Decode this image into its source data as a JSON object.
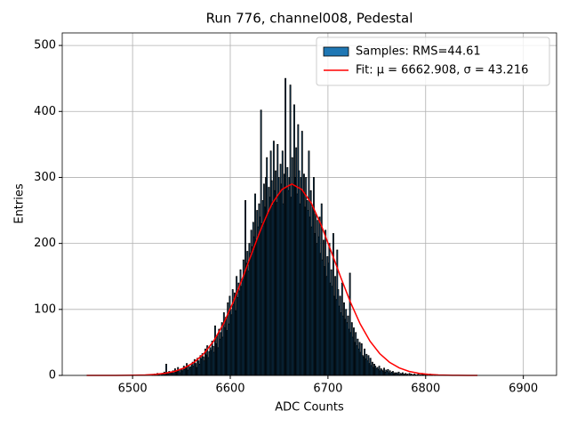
{
  "chart_data": {
    "type": "histogram",
    "title": "Run 776, channel008, Pedestal",
    "xlabel": "ADC Counts",
    "ylabel": "Entries",
    "name": "Samples: RMS=44.61",
    "color": "#1f77b4",
    "edgecolor": "#000000",
    "bins": [
      6520,
      6521,
      6522,
      6523,
      6524,
      6525,
      6526,
      6527,
      6528,
      6529,
      6530,
      6531,
      6532,
      6533,
      6534,
      6535,
      6536,
      6537,
      6538,
      6539,
      6540,
      6541,
      6542,
      6543,
      6544,
      6545,
      6546,
      6547,
      6548,
      6549,
      6550,
      6551,
      6552,
      6553,
      6554,
      6555,
      6556,
      6557,
      6558,
      6559,
      6560,
      6561,
      6562,
      6563,
      6564,
      6565,
      6566,
      6567,
      6568,
      6569,
      6570,
      6571,
      6572,
      6573,
      6574,
      6575,
      6576,
      6577,
      6578,
      6579,
      6580,
      6581,
      6582,
      6583,
      6584,
      6585,
      6586,
      6587,
      6588,
      6589,
      6590,
      6591,
      6592,
      6593,
      6594,
      6595,
      6596,
      6597,
      6598,
      6599,
      6600,
      6601,
      6602,
      6603,
      6604,
      6605,
      6606,
      6607,
      6608,
      6609,
      6610,
      6611,
      6612,
      6613,
      6614,
      6615,
      6616,
      6617,
      6618,
      6619,
      6620,
      6621,
      6622,
      6623,
      6624,
      6625,
      6626,
      6627,
      6628,
      6629,
      6630,
      6631,
      6632,
      6633,
      6634,
      6635,
      6636,
      6637,
      6638,
      6639,
      6640,
      6641,
      6642,
      6643,
      6644,
      6645,
      6646,
      6647,
      6648,
      6649,
      6650,
      6651,
      6652,
      6653,
      6654,
      6655,
      6656,
      6657,
      6658,
      6659,
      6660,
      6661,
      6662,
      6663,
      6664,
      6665,
      6666,
      6667,
      6668,
      6669,
      6670,
      6671,
      6672,
      6673,
      6674,
      6675,
      6676,
      6677,
      6678,
      6679,
      6680,
      6681,
      6682,
      6683,
      6684,
      6685,
      6686,
      6687,
      6688,
      6689,
      6690,
      6691,
      6692,
      6693,
      6694,
      6695,
      6696,
      6697,
      6698,
      6699,
      6700,
      6701,
      6702,
      6703,
      6704,
      6705,
      6706,
      6707,
      6708,
      6709,
      6710,
      6711,
      6712,
      6713,
      6714,
      6715,
      6716,
      6717,
      6718,
      6719,
      6720,
      6721,
      6722,
      6723,
      6724,
      6725,
      6726,
      6727,
      6728,
      6729,
      6730,
      6731,
      6732,
      6733,
      6734,
      6735,
      6736,
      6737,
      6738,
      6739,
      6740,
      6741,
      6742,
      6743,
      6744,
      6745,
      6746,
      6747,
      6748,
      6749,
      6750,
      6751,
      6752,
      6753,
      6754,
      6755,
      6756,
      6757,
      6758,
      6759,
      6760,
      6761,
      6762,
      6763,
      6764,
      6765,
      6766,
      6767,
      6768,
      6769,
      6770,
      6771,
      6772,
      6773,
      6774,
      6775,
      6776,
      6777,
      6778,
      6779,
      6780,
      6781,
      6782,
      6783,
      6784,
      6785,
      6786,
      6787,
      6788,
      6789,
      6790,
      6791,
      6792,
      6793,
      6794,
      6795,
      6796,
      6797,
      6798,
      6799,
      6800,
      6801,
      6802,
      6803,
      6804,
      6805,
      6806,
      6807,
      6808,
      6809,
      6810
    ],
    "counts": [
      1,
      0,
      2,
      1,
      0,
      3,
      1,
      2,
      0,
      2,
      3,
      2,
      5,
      1,
      17,
      4,
      2,
      6,
      3,
      5,
      4,
      7,
      3,
      10,
      5,
      6,
      12,
      8,
      4,
      9,
      10,
      7,
      14,
      9,
      12,
      18,
      8,
      15,
      11,
      13,
      16,
      20,
      14,
      24,
      18,
      12,
      26,
      22,
      17,
      30,
      25,
      33,
      28,
      22,
      40,
      31,
      45,
      27,
      36,
      42,
      38,
      52,
      44,
      35,
      75,
      48,
      60,
      42,
      70,
      55,
      65,
      80,
      58,
      95,
      72,
      88,
      68,
      110,
      78,
      120,
      100,
      92,
      130,
      108,
      125,
      98,
      150,
      118,
      140,
      128,
      160,
      135,
      145,
      175,
      152,
      265,
      170,
      188,
      158,
      200,
      185,
      220,
      195,
      232,
      210,
      275,
      205,
      250,
      225,
      260,
      240,
      402,
      230,
      265,
      290,
      255,
      300,
      330,
      245,
      285,
      270,
      340,
      295,
      258,
      355,
      280,
      310,
      262,
      350,
      300,
      275,
      320,
      290,
      340,
      260,
      305,
      450,
      285,
      315,
      280,
      300,
      440,
      270,
      330,
      290,
      410,
      300,
      345,
      275,
      380,
      310,
      260,
      300,
      370,
      280,
      305,
      255,
      300,
      265,
      250,
      340,
      240,
      280,
      225,
      255,
      300,
      215,
      245,
      200,
      235,
      210,
      240,
      185,
      260,
      175,
      205,
      165,
      220,
      150,
      180,
      170,
      200,
      140,
      160,
      135,
      215,
      120,
      150,
      115,
      190,
      130,
      105,
      120,
      95,
      140,
      90,
      110,
      85,
      100,
      80,
      90,
      70,
      155,
      65,
      80,
      58,
      72,
      50,
      65,
      45,
      55,
      40,
      50,
      35,
      48,
      30,
      28,
      40,
      25,
      32,
      22,
      30,
      18,
      26,
      15,
      20,
      12,
      17,
      14,
      10,
      12,
      9,
      14,
      7,
      10,
      8,
      6,
      11,
      5,
      8,
      6,
      9,
      4,
      7,
      3,
      5,
      6,
      2,
      4,
      3,
      4,
      2,
      5,
      1,
      3,
      2,
      4,
      1,
      2,
      3,
      1,
      2,
      0,
      3,
      1,
      2,
      0,
      1,
      2,
      1,
      0,
      1,
      2,
      0,
      1,
      0,
      3,
      1,
      0,
      1,
      0,
      1,
      0,
      0,
      2,
      0,
      1,
      0,
      0,
      1
    ],
    "fit": {
      "type": "line",
      "name": "Fit: μ = 6662.908, σ = 43.216",
      "color": "#ff0000",
      "x": [
        6453,
        6463,
        6473,
        6483,
        6493,
        6503,
        6513,
        6523,
        6533,
        6543,
        6553,
        6563,
        6573,
        6583,
        6593,
        6603,
        6613,
        6623,
        6633,
        6643,
        6653,
        6663,
        6673,
        6683,
        6693,
        6703,
        6713,
        6723,
        6733,
        6743,
        6753,
        6763,
        6773,
        6783,
        6793,
        6803,
        6813,
        6823,
        6833,
        6843,
        6853
      ],
      "values": [
        0,
        0,
        0,
        0.05,
        0.13,
        0.31,
        0.7,
        1.5,
        3.2,
        6.1,
        11.4,
        19.9,
        33,
        52,
        78,
        111,
        149,
        189,
        228,
        261,
        282,
        290,
        282,
        261,
        228,
        189,
        149,
        111,
        78,
        52,
        33,
        19.9,
        11.4,
        6.1,
        3.2,
        1.5,
        0.7,
        0.31,
        0.13,
        0.05,
        0
      ]
    },
    "xlim": [
      6428,
      6934
    ],
    "ylim": [
      0,
      519
    ],
    "xticks": [
      6500,
      6600,
      6700,
      6800,
      6900
    ],
    "yticks": [
      0,
      100,
      200,
      300,
      400,
      500
    ],
    "grid": true,
    "legend": "upper right"
  }
}
